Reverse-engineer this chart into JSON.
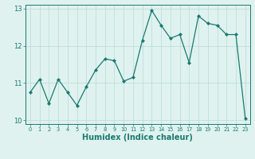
{
  "x": [
    0,
    1,
    2,
    3,
    4,
    5,
    6,
    7,
    8,
    9,
    10,
    11,
    12,
    13,
    14,
    15,
    16,
    17,
    18,
    19,
    20,
    21,
    22,
    23
  ],
  "y": [
    10.75,
    11.1,
    10.45,
    11.1,
    10.75,
    10.4,
    10.9,
    11.35,
    11.65,
    11.6,
    11.05,
    11.15,
    12.15,
    12.95,
    12.55,
    12.2,
    12.3,
    11.55,
    12.8,
    12.6,
    12.55,
    12.3,
    12.3,
    10.05
  ],
  "xlim": [
    -0.5,
    23.5
  ],
  "ylim": [
    9.9,
    13.1
  ],
  "yticks": [
    10,
    11,
    12,
    13
  ],
  "xlabel": "Humidex (Indice chaleur)",
  "line_color": "#1a7a6e",
  "marker": "D",
  "marker_size": 2.0,
  "bg_color": "#dff2f0",
  "grid_color": "#b8dbd8",
  "xlabel_fontsize": 7.0,
  "xtick_fontsize": 4.8,
  "ytick_fontsize": 6.0
}
